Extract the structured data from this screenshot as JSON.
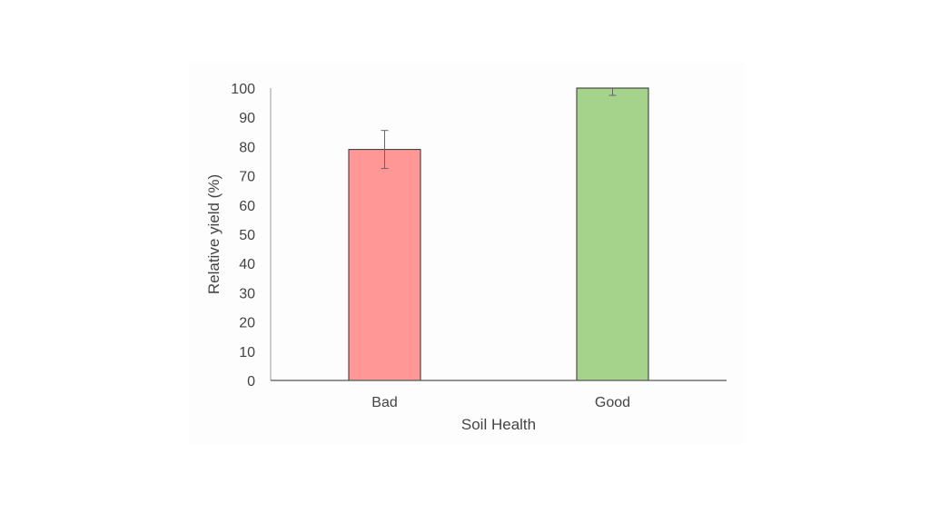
{
  "chart_data": {
    "type": "bar",
    "categories": [
      "Bad",
      "Good"
    ],
    "values": [
      79,
      100
    ],
    "error_bars": [
      6.5,
      2.5
    ],
    "bar_colors": [
      "#ff9797",
      "#a6d38c"
    ],
    "title": "",
    "xlabel": "Soil Health",
    "ylabel": "Relative yield (%)",
    "ylim": [
      0,
      100
    ],
    "yticks": [
      "0",
      "10",
      "20",
      "30",
      "40",
      "50",
      "60",
      "70",
      "80",
      "90",
      "100"
    ],
    "grid": false,
    "legend": "none"
  }
}
